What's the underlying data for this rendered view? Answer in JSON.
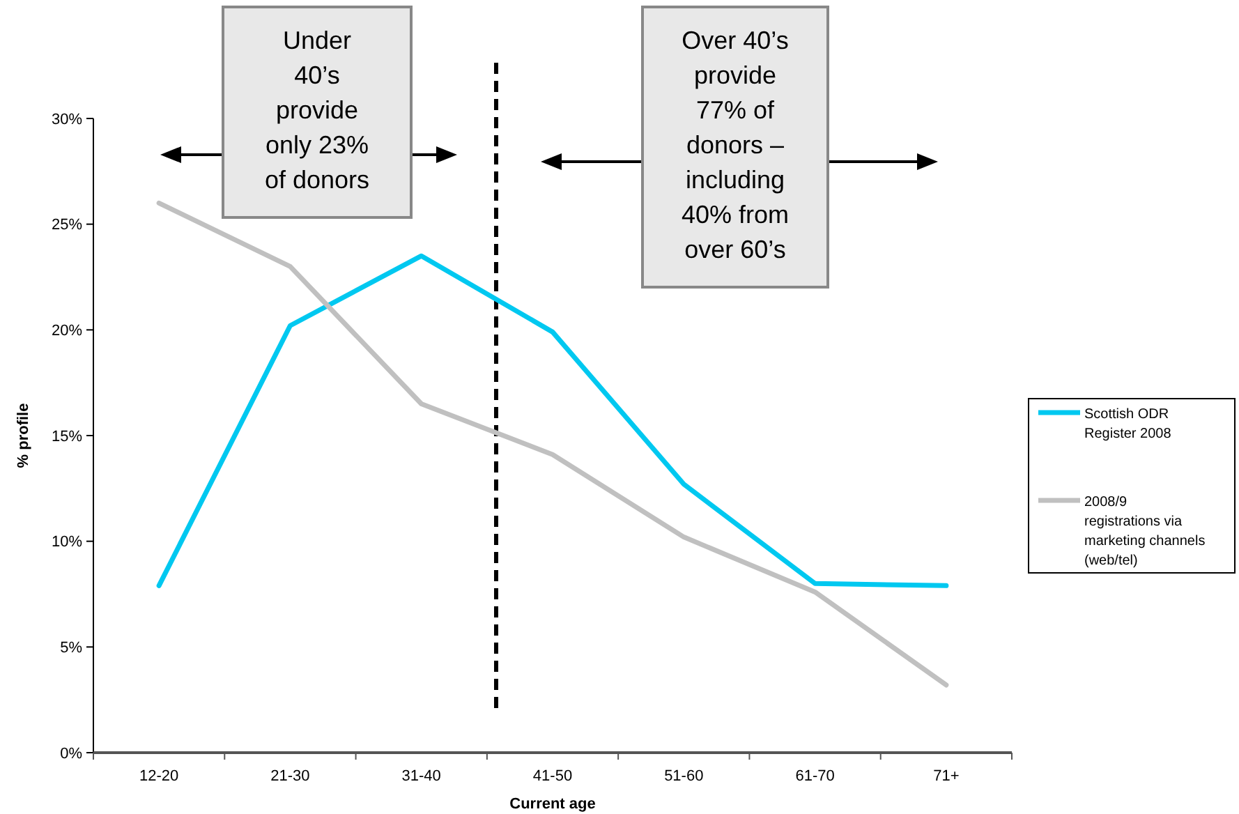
{
  "chart_data": {
    "type": "line",
    "xlabel": "Current age",
    "ylabel": "% profile",
    "categories": [
      "12-20",
      "21-30",
      "31-40",
      "41-50",
      "51-60",
      "61-70",
      "71+"
    ],
    "series": [
      {
        "name": "Scottish ODR Register 2008",
        "color": "#00c8f0",
        "values": [
          7.9,
          20.2,
          23.5,
          19.9,
          12.7,
          8.0,
          7.9
        ]
      },
      {
        "name": "2008/9 registrations via marketing channels (web/tel)",
        "color": "#c0c0c0",
        "values": [
          26.0,
          23.0,
          16.5,
          14.1,
          10.2,
          7.6,
          3.2
        ]
      }
    ],
    "ylim": [
      0,
      30
    ],
    "yticks": [
      {
        "value": 0,
        "label": "0%"
      },
      {
        "value": 5,
        "label": "5%"
      },
      {
        "value": 10,
        "label": "10%"
      },
      {
        "value": 15,
        "label": "15%"
      },
      {
        "value": 20,
        "label": "20%"
      },
      {
        "value": 25,
        "label": "25%"
      },
      {
        "value": 30,
        "label": "30%"
      }
    ],
    "annotations": [
      "Under\n40’s\nprovide\nonly 23%\nof donors",
      "Over 40’s\nprovide\n77% of\ndonors –\nincluding\n40% from\nover 60’s"
    ],
    "legend": "right",
    "grid": false,
    "marker": "none",
    "line_style": "solid"
  }
}
